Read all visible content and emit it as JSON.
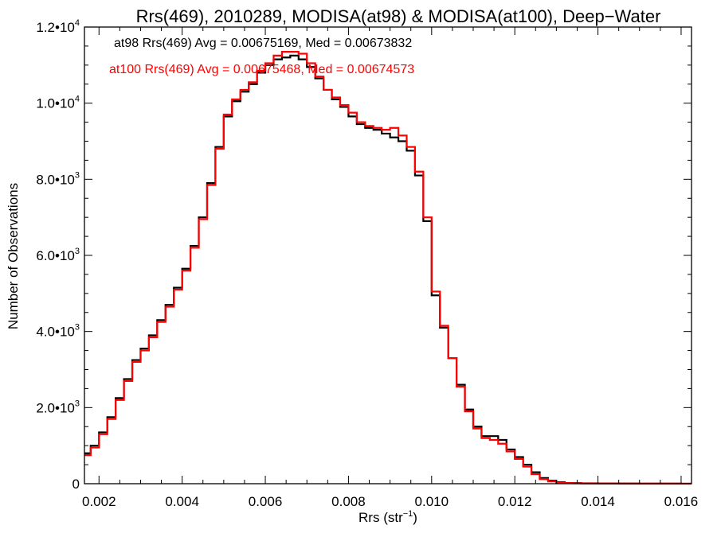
{
  "chart_data": {
    "type": "line",
    "style": "histogram-step",
    "title": "Rrs(469), 2010289, MODISA(at98) & MODISA(at100), Deep−Water",
    "xlabel": {
      "base": "Rrs (str",
      "sup": "−1",
      "close": ")"
    },
    "ylabel": "Number of Observations",
    "xlim": [
      0.00165,
      0.01625
    ],
    "ylim": [
      0,
      12000
    ],
    "x_ticks": [
      {
        "value": 0.002,
        "label": "0.002"
      },
      {
        "value": 0.004,
        "label": "0.004"
      },
      {
        "value": 0.006,
        "label": "0.006"
      },
      {
        "value": 0.008,
        "label": "0.008"
      },
      {
        "value": 0.01,
        "label": "0.010"
      },
      {
        "value": 0.012,
        "label": "0.012"
      },
      {
        "value": 0.014,
        "label": "0.014"
      },
      {
        "value": 0.016,
        "label": "0.016"
      }
    ],
    "y_ticks": [
      {
        "value": 0,
        "mantissa": "0",
        "exp": ""
      },
      {
        "value": 2000,
        "mantissa": "2.0•10",
        "exp": "3"
      },
      {
        "value": 4000,
        "mantissa": "4.0•10",
        "exp": "3"
      },
      {
        "value": 6000,
        "mantissa": "6.0•10",
        "exp": "3"
      },
      {
        "value": 8000,
        "mantissa": "8.0•10",
        "exp": "3"
      },
      {
        "value": 10000,
        "mantissa": "1.0•10",
        "exp": "4"
      },
      {
        "value": 12000,
        "mantissa": "1.2•10",
        "exp": "4"
      }
    ],
    "grid": false,
    "legend_position": "top-left",
    "series": [
      {
        "name": "at98",
        "color": "#000000",
        "annotation": "at98 Rrs(469) Avg = 0.00675169, Med = 0.00673832",
        "x": [
          0.00165,
          0.0018,
          0.002,
          0.0022,
          0.0024,
          0.0026,
          0.0028,
          0.003,
          0.0032,
          0.0034,
          0.0036,
          0.0038,
          0.004,
          0.0042,
          0.0044,
          0.0046,
          0.0048,
          0.005,
          0.0052,
          0.0054,
          0.0056,
          0.0058,
          0.006,
          0.0062,
          0.0064,
          0.0066,
          0.0068,
          0.007,
          0.0072,
          0.0074,
          0.0076,
          0.0078,
          0.008,
          0.0082,
          0.0084,
          0.0086,
          0.0088,
          0.009,
          0.0092,
          0.0094,
          0.0096,
          0.0098,
          0.01,
          0.0102,
          0.0104,
          0.0106,
          0.0108,
          0.011,
          0.0112,
          0.0114,
          0.0116,
          0.0118,
          0.012,
          0.0122,
          0.0124,
          0.0126,
          0.0128,
          0.013,
          0.0132,
          0.0134,
          0.0136,
          0.014,
          0.0145,
          0.015,
          0.0155,
          0.016,
          0.01625
        ],
        "y": [
          800,
          1000,
          1350,
          1750,
          2250,
          2750,
          3250,
          3550,
          3900,
          4300,
          4700,
          5150,
          5650,
          6250,
          7000,
          7900,
          8850,
          9650,
          10050,
          10300,
          10500,
          10800,
          11000,
          11150,
          11200,
          11250,
          11150,
          10950,
          10650,
          10350,
          10100,
          9900,
          9650,
          9450,
          9350,
          9300,
          9200,
          9100,
          9000,
          8750,
          8100,
          6900,
          4950,
          4100,
          3300,
          2600,
          1950,
          1500,
          1250,
          1250,
          1150,
          900,
          700,
          500,
          300,
          150,
          80,
          40,
          20,
          15,
          10,
          8,
          5,
          3,
          2,
          1,
          1
        ]
      },
      {
        "name": "at100",
        "color": "#ff0000",
        "annotation": "at100 Rrs(469) Avg = 0.00675468, Med = 0.00674573",
        "x": [
          0.00165,
          0.0018,
          0.002,
          0.0022,
          0.0024,
          0.0026,
          0.0028,
          0.003,
          0.0032,
          0.0034,
          0.0036,
          0.0038,
          0.004,
          0.0042,
          0.0044,
          0.0046,
          0.0048,
          0.005,
          0.0052,
          0.0054,
          0.0056,
          0.0058,
          0.006,
          0.0062,
          0.0064,
          0.0066,
          0.0068,
          0.007,
          0.0072,
          0.0074,
          0.0076,
          0.0078,
          0.008,
          0.0082,
          0.0084,
          0.0086,
          0.0088,
          0.009,
          0.0092,
          0.0094,
          0.0096,
          0.0098,
          0.01,
          0.0102,
          0.0104,
          0.0106,
          0.0108,
          0.011,
          0.0112,
          0.0114,
          0.0116,
          0.0118,
          0.012,
          0.0122,
          0.0124,
          0.0126,
          0.0128,
          0.013,
          0.0132,
          0.0134,
          0.0136,
          0.014,
          0.0145,
          0.015,
          0.0155,
          0.016,
          0.01625
        ],
        "y": [
          750,
          950,
          1300,
          1700,
          2200,
          2700,
          3200,
          3500,
          3850,
          4250,
          4650,
          5100,
          5600,
          6200,
          6950,
          7850,
          8800,
          9700,
          10100,
          10350,
          10550,
          10850,
          11050,
          11250,
          11350,
          11350,
          11300,
          11050,
          10700,
          10350,
          10150,
          9950,
          9750,
          9500,
          9400,
          9350,
          9300,
          9350,
          9150,
          8850,
          8200,
          7000,
          5050,
          4150,
          3300,
          2550,
          1900,
          1450,
          1200,
          1150,
          1050,
          850,
          650,
          450,
          250,
          120,
          60,
          30,
          15,
          10,
          8,
          6,
          4,
          3,
          2,
          1,
          1
        ]
      }
    ]
  }
}
